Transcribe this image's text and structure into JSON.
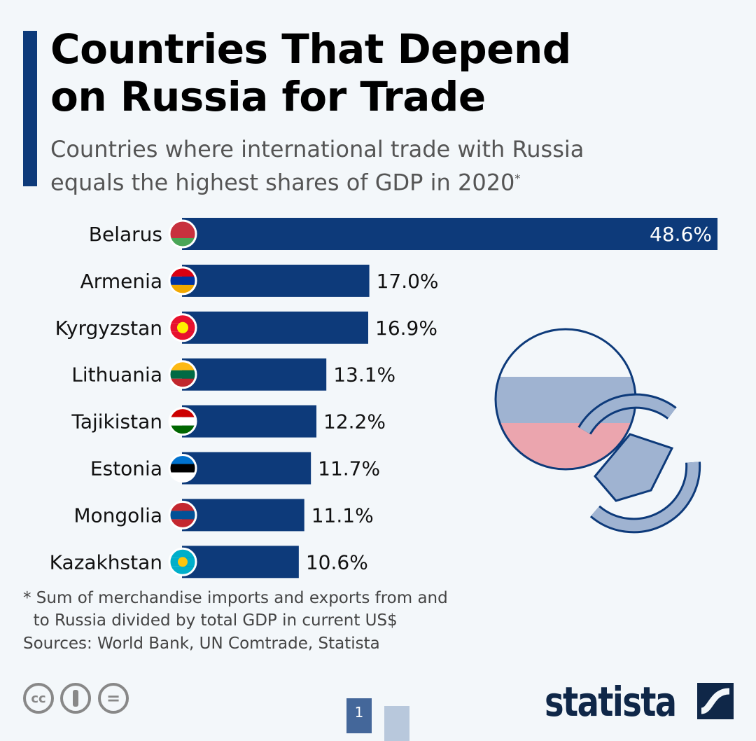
{
  "header": {
    "title_line1": "Countries That Depend",
    "title_line2": "on Russia for Trade",
    "subtitle_line1": "Countries where international trade with Russia",
    "subtitle_line2": "equals the highest shares of GDP in 2020",
    "subtitle_mark": "*"
  },
  "chart_data": {
    "type": "bar",
    "orientation": "horizontal",
    "title": "Countries That Depend on Russia for Trade",
    "xlabel": "",
    "ylabel": "",
    "unit": "% of GDP",
    "categories": [
      "Belarus",
      "Armenia",
      "Kyrgyzstan",
      "Lithuania",
      "Tajikistan",
      "Estonia",
      "Mongolia",
      "Kazakhstan"
    ],
    "values": [
      48.6,
      17.0,
      16.9,
      13.1,
      12.2,
      11.7,
      11.1,
      10.6
    ],
    "labels": [
      "48.6%",
      "17.0%",
      "16.9%",
      "13.1%",
      "12.2%",
      "11.7%",
      "11.1%",
      "10.6%"
    ],
    "xlim": [
      0,
      48.6
    ],
    "grid": false,
    "bar_color": "#0d3a7a"
  },
  "flags": [
    "belarus-flag-icon",
    "armenia-flag-icon",
    "kyrgyzstan-flag-icon",
    "lithuania-flag-icon",
    "tajikistan-flag-icon",
    "estonia-flag-icon",
    "mongolia-flag-icon",
    "kazakhstan-flag-icon"
  ],
  "footer": {
    "note_line1": "* Sum of merchandise imports and exports from and",
    "note_line2": "to Russia divided by total GDP in current US$",
    "sources": "Sources: World Bank, UN Comtrade, Statista",
    "page": "1",
    "logo": "statista",
    "cc_label": "cc",
    "nd_label": "="
  }
}
